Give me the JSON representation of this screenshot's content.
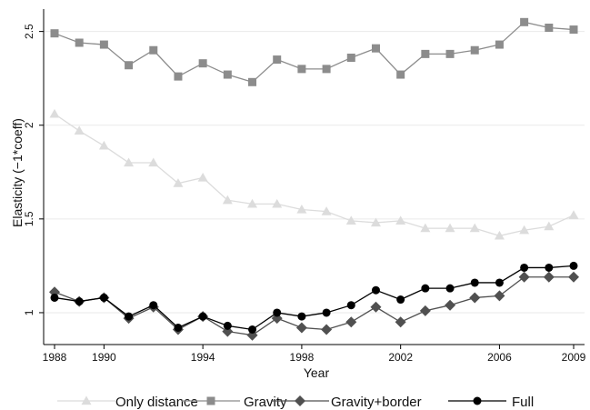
{
  "chart_data": {
    "type": "line",
    "title": "",
    "xlabel": "Year",
    "ylabel": "Elasticity (−1*coeff)",
    "xlim": [
      1988,
      2009
    ],
    "ylim": [
      0.83,
      2.6
    ],
    "x_ticks": [
      1988,
      1990,
      1994,
      1998,
      2002,
      2006,
      2009
    ],
    "y_ticks": [
      1,
      1.5,
      2,
      2.5
    ],
    "grid": "horizontal",
    "legend_position": "bottom",
    "x": [
      1988,
      1989,
      1990,
      1991,
      1992,
      1993,
      1994,
      1995,
      1996,
      1997,
      1998,
      1999,
      2000,
      2001,
      2002,
      2003,
      2004,
      2005,
      2006,
      2007,
      2008,
      2009
    ],
    "series": [
      {
        "name": "Only distance",
        "color": "#dcdcdc",
        "marker": "triangle",
        "values": [
          2.06,
          1.97,
          1.89,
          1.8,
          1.8,
          1.69,
          1.72,
          1.6,
          1.58,
          1.58,
          1.55,
          1.54,
          1.49,
          1.48,
          1.49,
          1.45,
          1.45,
          1.45,
          1.41,
          1.44,
          1.46,
          1.52
        ]
      },
      {
        "name": "Gravity",
        "color": "#8c8c8c",
        "marker": "square",
        "values": [
          2.49,
          2.44,
          2.43,
          2.32,
          2.4,
          2.26,
          2.33,
          2.27,
          2.23,
          2.35,
          2.3,
          2.3,
          2.36,
          2.41,
          2.27,
          2.38,
          2.38,
          2.4,
          2.43,
          2.55,
          2.52,
          2.51
        ]
      },
      {
        "name": "Gravity+border",
        "color": "#505050",
        "marker": "diamond",
        "values": [
          1.11,
          1.06,
          1.08,
          0.97,
          1.03,
          0.91,
          0.98,
          0.9,
          0.88,
          0.97,
          0.92,
          0.91,
          0.95,
          1.03,
          0.95,
          1.01,
          1.04,
          1.08,
          1.09,
          1.19,
          1.19,
          1.19
        ]
      },
      {
        "name": "Full",
        "color": "#000000",
        "marker": "circle",
        "values": [
          1.08,
          1.06,
          1.08,
          0.98,
          1.04,
          0.92,
          0.98,
          0.93,
          0.91,
          1.0,
          0.98,
          1.0,
          1.04,
          1.12,
          1.07,
          1.13,
          1.13,
          1.16,
          1.16,
          1.24,
          1.24,
          1.25
        ]
      }
    ]
  }
}
